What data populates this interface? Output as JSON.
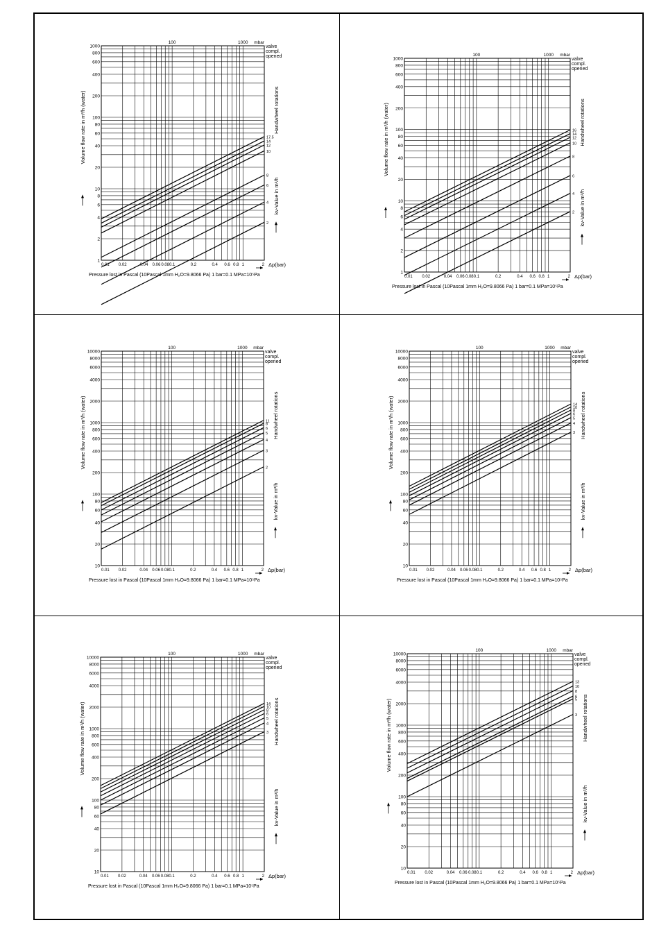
{
  "common": {
    "top_label_100": "100",
    "top_label_1000": "1000",
    "top_unit": "mbar",
    "y_label": "Volume flow rate in m³/h (water)",
    "valve_lines": [
      "valve",
      "compl.",
      "opened"
    ],
    "rotations_label": "Handwheel rotations",
    "kv_label": "kv-Value in m³/h",
    "x_label": "Δp(bar)",
    "footer": "Pressure lost in Pascal (10Pascal 1mm H₂O=9.8066 Pa) 1 bar=0.1 MPa=10⁵Pa",
    "x_ticks": [
      "0.01",
      "0.02",
      "0.04",
      "0.06",
      "0.08",
      "0.1",
      "0.2",
      "0.4",
      "0.6",
      "0.8",
      "1",
      "2"
    ]
  },
  "chart_data": [
    {
      "type": "line",
      "xscale": "log",
      "yscale": "log",
      "xlim": [
        0.01,
        2
      ],
      "ylim": [
        1,
        1000
      ],
      "y_ticks": [
        1,
        2,
        4,
        6,
        8,
        10,
        20,
        40,
        60,
        80,
        100,
        200,
        400,
        600,
        800,
        1000
      ],
      "rotation_labels": [
        "17.5",
        "14",
        "12",
        "10",
        "8",
        "6",
        "4",
        "2"
      ],
      "series": [
        {
          "name": "17.5",
          "kv": 38
        },
        {
          "name": "14",
          "kv": 33
        },
        {
          "name": "12",
          "kv": 29
        },
        {
          "name": "10",
          "kv": 24
        },
        {
          "name": "8",
          "kv": 11
        },
        {
          "name": "6",
          "kv": 8
        },
        {
          "name": "4",
          "kv": 4.6
        },
        {
          "name": "2",
          "kv": 2.4
        }
      ]
    },
    {
      "type": "line",
      "xscale": "log",
      "yscale": "log",
      "xlim": [
        0.01,
        2
      ],
      "ylim": [
        1,
        1000
      ],
      "y_ticks": [
        1,
        2,
        4,
        6,
        8,
        10,
        20,
        40,
        60,
        80,
        100,
        200,
        400,
        600,
        800,
        1000
      ],
      "rotation_labels": [
        "16",
        "14",
        "12",
        "10",
        "8",
        "6",
        "4",
        "2"
      ],
      "series": [
        {
          "name": "16",
          "kv": 70
        },
        {
          "name": "14",
          "kv": 62
        },
        {
          "name": "12",
          "kv": 55
        },
        {
          "name": "10",
          "kv": 46
        },
        {
          "name": "8",
          "kv": 30
        },
        {
          "name": "6",
          "kv": 16
        },
        {
          "name": "4",
          "kv": 9
        },
        {
          "name": "2",
          "kv": 5
        }
      ]
    },
    {
      "type": "line",
      "xscale": "log",
      "yscale": "log",
      "xlim": [
        0.01,
        2
      ],
      "ylim": [
        10,
        10000
      ],
      "y_ticks": [
        10,
        20,
        40,
        60,
        80,
        100,
        200,
        400,
        600,
        800,
        1000,
        2000,
        4000,
        6000,
        8000,
        10000
      ],
      "rotation_labels": [
        "11",
        "8",
        "6",
        "5",
        "4",
        "3",
        "2"
      ],
      "series": [
        {
          "name": "11",
          "kv": 760
        },
        {
          "name": "8",
          "kv": 690
        },
        {
          "name": "6",
          "kv": 600
        },
        {
          "name": "5",
          "kv": 510
        },
        {
          "name": "4",
          "kv": 410
        },
        {
          "name": "3",
          "kv": 290
        },
        {
          "name": "2",
          "kv": 170
        }
      ]
    },
    {
      "type": "line",
      "xscale": "log",
      "yscale": "log",
      "xlim": [
        0.01,
        2
      ],
      "ylim": [
        10,
        10000
      ],
      "y_ticks": [
        10,
        20,
        40,
        60,
        80,
        100,
        200,
        400,
        600,
        800,
        1000,
        2000,
        4000,
        6000,
        8000,
        10000
      ],
      "rotation_labels": [
        "14",
        "10",
        "8",
        "6",
        "5",
        "4",
        "3"
      ],
      "series": [
        {
          "name": "14",
          "kv": 1290
        },
        {
          "name": "10",
          "kv": 1170
        },
        {
          "name": "8",
          "kv": 1060
        },
        {
          "name": "6",
          "kv": 950
        },
        {
          "name": "5",
          "kv": 830
        },
        {
          "name": "4",
          "kv": 700
        },
        {
          "name": "3",
          "kv": 520
        }
      ]
    },
    {
      "type": "line",
      "xscale": "log",
      "yscale": "log",
      "xlim": [
        0.01,
        2
      ],
      "ylim": [
        10,
        10000
      ],
      "y_ticks": [
        10,
        20,
        40,
        60,
        80,
        100,
        200,
        400,
        600,
        800,
        1000,
        2000,
        4000,
        6000,
        8000,
        10000
      ],
      "rotation_labels": [
        "14",
        "10",
        "8",
        "6",
        "5",
        "4",
        "3"
      ],
      "series": [
        {
          "name": "14",
          "kv": 1600
        },
        {
          "name": "10",
          "kv": 1450
        },
        {
          "name": "8",
          "kv": 1300
        },
        {
          "name": "6",
          "kv": 1150
        },
        {
          "name": "5",
          "kv": 1000
        },
        {
          "name": "4",
          "kv": 850
        },
        {
          "name": "3",
          "kv": 640
        }
      ]
    },
    {
      "type": "line",
      "xscale": "log",
      "yscale": "log",
      "xlim": [
        0.01,
        2
      ],
      "ylim": [
        10,
        10000
      ],
      "y_ticks": [
        10,
        20,
        40,
        60,
        80,
        100,
        200,
        400,
        600,
        800,
        1000,
        2000,
        4000,
        6000,
        8000,
        10000
      ],
      "rotation_labels": [
        "13",
        "10",
        "8",
        "6",
        "5",
        "3"
      ],
      "series": [
        {
          "name": "13",
          "kv": 2900
        },
        {
          "name": "10",
          "kv": 2500
        },
        {
          "name": "8",
          "kv": 2150
        },
        {
          "name": "6",
          "kv": 1800
        },
        {
          "name": "5",
          "kv": 1650
        },
        {
          "name": "3",
          "kv": 1000
        }
      ]
    }
  ]
}
